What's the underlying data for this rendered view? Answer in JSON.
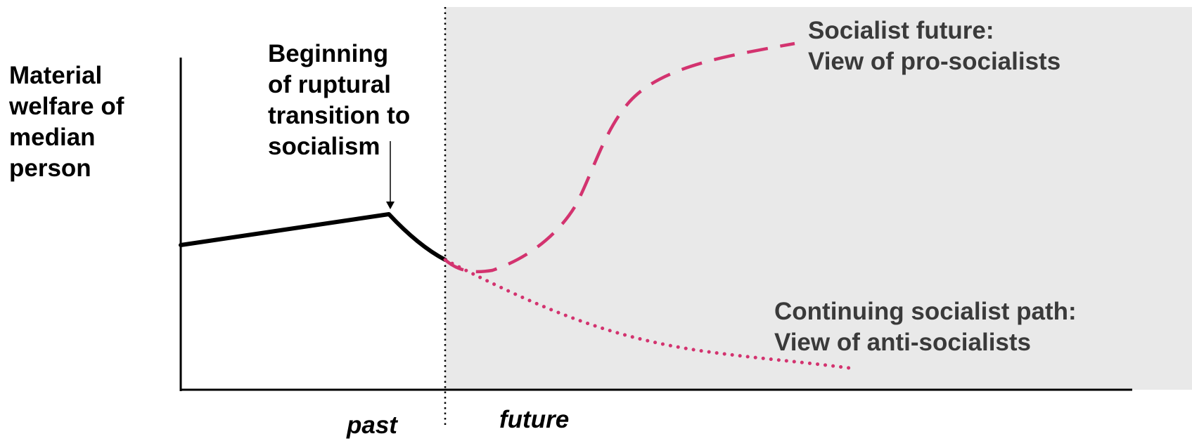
{
  "y_axis_label": [
    "Material",
    "welfare of",
    "median",
    "person"
  ],
  "annotation": [
    "Beginning",
    "of ruptural",
    "transition to",
    "socialism"
  ],
  "labels": {
    "pro_socialist": [
      "Socialist future:",
      "View of pro-socialists"
    ],
    "anti_socialist": [
      "Continuing socialist path:",
      "View of anti-socialists"
    ],
    "past": "past",
    "future": "future"
  },
  "colors": {
    "projection": "#d3336f",
    "future_background": "#e9e9e9",
    "history": "#000000",
    "label_text": "#3a3a3a"
  }
}
